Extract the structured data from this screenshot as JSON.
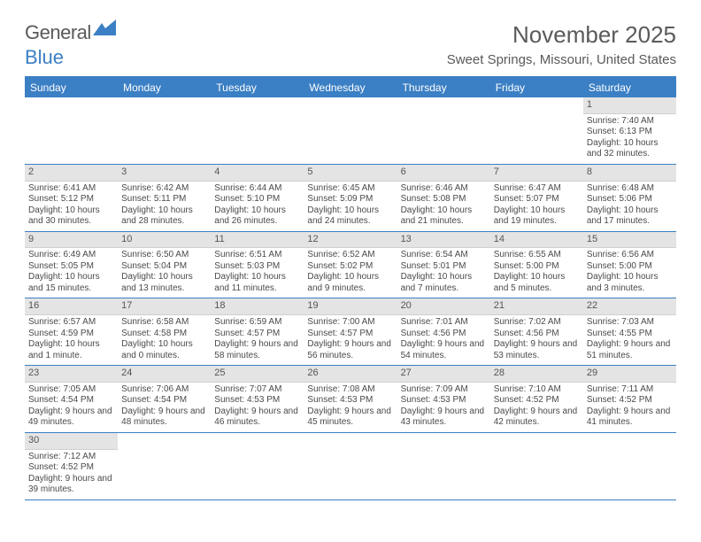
{
  "logo": {
    "text1": "General",
    "text2": "Blue"
  },
  "title": "November 2025",
  "location": "Sweet Springs, Missouri, United States",
  "colors": {
    "header_bg": "#3b7fc4",
    "header_text": "#ffffff",
    "daynum_bg": "#e4e4e4",
    "text": "#4a4a4a",
    "title_text": "#5a5a5a"
  },
  "dayNames": [
    "Sunday",
    "Monday",
    "Tuesday",
    "Wednesday",
    "Thursday",
    "Friday",
    "Saturday"
  ],
  "weeks": [
    [
      null,
      null,
      null,
      null,
      null,
      null,
      {
        "n": "1",
        "sr": "7:40 AM",
        "ss": "6:13 PM",
        "dl": "10 hours and 32 minutes."
      }
    ],
    [
      {
        "n": "2",
        "sr": "6:41 AM",
        "ss": "5:12 PM",
        "dl": "10 hours and 30 minutes."
      },
      {
        "n": "3",
        "sr": "6:42 AM",
        "ss": "5:11 PM",
        "dl": "10 hours and 28 minutes."
      },
      {
        "n": "4",
        "sr": "6:44 AM",
        "ss": "5:10 PM",
        "dl": "10 hours and 26 minutes."
      },
      {
        "n": "5",
        "sr": "6:45 AM",
        "ss": "5:09 PM",
        "dl": "10 hours and 24 minutes."
      },
      {
        "n": "6",
        "sr": "6:46 AM",
        "ss": "5:08 PM",
        "dl": "10 hours and 21 minutes."
      },
      {
        "n": "7",
        "sr": "6:47 AM",
        "ss": "5:07 PM",
        "dl": "10 hours and 19 minutes."
      },
      {
        "n": "8",
        "sr": "6:48 AM",
        "ss": "5:06 PM",
        "dl": "10 hours and 17 minutes."
      }
    ],
    [
      {
        "n": "9",
        "sr": "6:49 AM",
        "ss": "5:05 PM",
        "dl": "10 hours and 15 minutes."
      },
      {
        "n": "10",
        "sr": "6:50 AM",
        "ss": "5:04 PM",
        "dl": "10 hours and 13 minutes."
      },
      {
        "n": "11",
        "sr": "6:51 AM",
        "ss": "5:03 PM",
        "dl": "10 hours and 11 minutes."
      },
      {
        "n": "12",
        "sr": "6:52 AM",
        "ss": "5:02 PM",
        "dl": "10 hours and 9 minutes."
      },
      {
        "n": "13",
        "sr": "6:54 AM",
        "ss": "5:01 PM",
        "dl": "10 hours and 7 minutes."
      },
      {
        "n": "14",
        "sr": "6:55 AM",
        "ss": "5:00 PM",
        "dl": "10 hours and 5 minutes."
      },
      {
        "n": "15",
        "sr": "6:56 AM",
        "ss": "5:00 PM",
        "dl": "10 hours and 3 minutes."
      }
    ],
    [
      {
        "n": "16",
        "sr": "6:57 AM",
        "ss": "4:59 PM",
        "dl": "10 hours and 1 minute."
      },
      {
        "n": "17",
        "sr": "6:58 AM",
        "ss": "4:58 PM",
        "dl": "10 hours and 0 minutes."
      },
      {
        "n": "18",
        "sr": "6:59 AM",
        "ss": "4:57 PM",
        "dl": "9 hours and 58 minutes."
      },
      {
        "n": "19",
        "sr": "7:00 AM",
        "ss": "4:57 PM",
        "dl": "9 hours and 56 minutes."
      },
      {
        "n": "20",
        "sr": "7:01 AM",
        "ss": "4:56 PM",
        "dl": "9 hours and 54 minutes."
      },
      {
        "n": "21",
        "sr": "7:02 AM",
        "ss": "4:56 PM",
        "dl": "9 hours and 53 minutes."
      },
      {
        "n": "22",
        "sr": "7:03 AM",
        "ss": "4:55 PM",
        "dl": "9 hours and 51 minutes."
      }
    ],
    [
      {
        "n": "23",
        "sr": "7:05 AM",
        "ss": "4:54 PM",
        "dl": "9 hours and 49 minutes."
      },
      {
        "n": "24",
        "sr": "7:06 AM",
        "ss": "4:54 PM",
        "dl": "9 hours and 48 minutes."
      },
      {
        "n": "25",
        "sr": "7:07 AM",
        "ss": "4:53 PM",
        "dl": "9 hours and 46 minutes."
      },
      {
        "n": "26",
        "sr": "7:08 AM",
        "ss": "4:53 PM",
        "dl": "9 hours and 45 minutes."
      },
      {
        "n": "27",
        "sr": "7:09 AM",
        "ss": "4:53 PM",
        "dl": "9 hours and 43 minutes."
      },
      {
        "n": "28",
        "sr": "7:10 AM",
        "ss": "4:52 PM",
        "dl": "9 hours and 42 minutes."
      },
      {
        "n": "29",
        "sr": "7:11 AM",
        "ss": "4:52 PM",
        "dl": "9 hours and 41 minutes."
      }
    ],
    [
      {
        "n": "30",
        "sr": "7:12 AM",
        "ss": "4:52 PM",
        "dl": "9 hours and 39 minutes."
      },
      null,
      null,
      null,
      null,
      null,
      null
    ]
  ],
  "labels": {
    "sunrise": "Sunrise:",
    "sunset": "Sunset:",
    "daylight": "Daylight:"
  }
}
